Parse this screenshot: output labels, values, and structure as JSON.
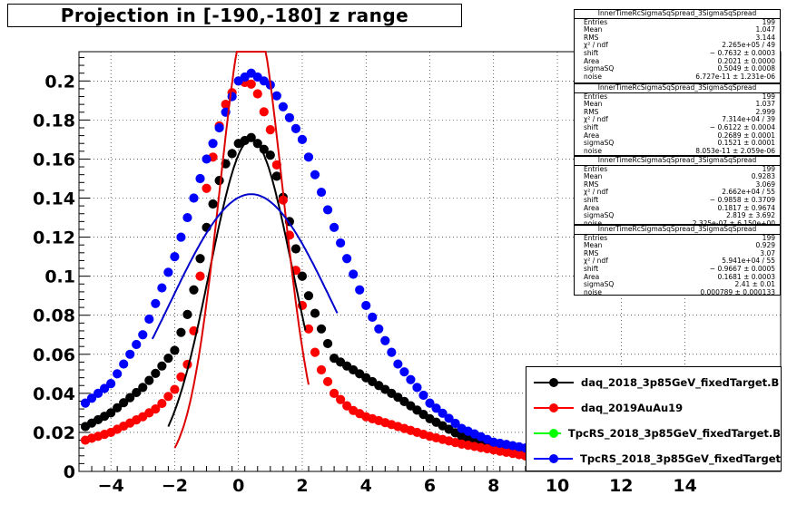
{
  "title": "Projection in [-190,-180] z range",
  "stats": [
    {
      "name": "InnerTimeRcSigmaSqSpread_3SigmaSqSpread",
      "rows": [
        [
          "Entries",
          "199"
        ],
        [
          "Mean",
          "1.047"
        ],
        [
          "RMS",
          "3.144"
        ],
        [
          "χ² / ndf",
          "2.265e+05 / 49"
        ],
        [
          "shift",
          "− 0.7632 ± 0.0003"
        ],
        [
          "Area",
          "0.2021 ± 0.0000"
        ],
        [
          "sigmaSQ",
          "0.5049 ± 0.0008"
        ],
        [
          "noise",
          "6.727e-11 ± 1.231e-06"
        ]
      ]
    },
    {
      "name": "InnerTimeRcSigmaSqSpread_3SigmaSqSpread",
      "rows": [
        [
          "Entries",
          "199"
        ],
        [
          "Mean",
          "1.037"
        ],
        [
          "RMS",
          "2.999"
        ],
        [
          "χ² / ndf",
          "7.314e+04 / 39"
        ],
        [
          "shift",
          "− 0.6122 ± 0.0004"
        ],
        [
          "Area",
          "0.2689 ± 0.0001"
        ],
        [
          "sigmaSQ",
          "0.1521 ± 0.0001"
        ],
        [
          "noise",
          "8.053e-11 ± 2.059e-06"
        ]
      ]
    },
    {
      "name": "InnerTimeRcSigmaSqSpread_3SigmaSqSpread",
      "rows": [
        [
          "Entries",
          "199"
        ],
        [
          "Mean",
          "0.9283"
        ],
        [
          "RMS",
          "3.069"
        ],
        [
          "χ² / ndf",
          "2.662e+04 / 55"
        ],
        [
          "shift",
          "− 0.9858 ± 0.3709"
        ],
        [
          "Area",
          "0.1817 ± 0.9674"
        ],
        [
          "sigmaSQ",
          "2.819 ± 3.692"
        ],
        [
          "noise",
          "2.325e-07 ± 6.150e+00"
        ]
      ]
    },
    {
      "name": "InnerTimeRcSigmaSqSpread_3SigmaSqSpread",
      "rows": [
        [
          "Entries",
          "199"
        ],
        [
          "Mean",
          "0.929"
        ],
        [
          "RMS",
          "3.07"
        ],
        [
          "χ² / ndf",
          "5.941e+04 / 55"
        ],
        [
          "shift",
          "− 0.9667 ± 0.0005"
        ],
        [
          "Area",
          "0.1681 ± 0.0003"
        ],
        [
          "sigmaSQ",
          "2.41 ± 0.01"
        ],
        [
          "noise",
          "0.000789 ± 0.000133"
        ]
      ]
    }
  ],
  "colors": {
    "black": "#000000",
    "red": "#ff0000",
    "green": "#00ff00",
    "blue": "#0000ff",
    "fit_red": "#dd0000",
    "fit_blue": "#0000cc"
  },
  "chart_data": {
    "type": "scatter",
    "title": "Projection in [-190,-180] z range",
    "xlim": [
      -5,
      17
    ],
    "ylim": [
      0,
      0.215
    ],
    "x_ticks": [
      -4,
      -2,
      0,
      2,
      4,
      6,
      8,
      10,
      12,
      14
    ],
    "y_ticks": [
      0,
      0.02,
      0.04,
      0.06,
      0.08,
      0.1,
      0.12,
      0.14,
      0.16,
      0.18,
      0.2
    ],
    "x_tick_labels": [
      "−4",
      "−2",
      "0",
      "2",
      "4",
      "6",
      "8",
      "10",
      "12",
      "14"
    ],
    "y_tick_labels": [
      "0",
      "0.02",
      "0.04",
      "0.06",
      "0.08",
      "0.1",
      "0.12",
      "0.14",
      "0.16",
      "0.18",
      "0.2"
    ],
    "grid": true,
    "legend_position": "bottom-right",
    "series": [
      {
        "name": "daq_2018_3p85GeV_fixedTarget.B",
        "color": "#000000",
        "x": [
          -4.8,
          -4,
          -3,
          -2.5,
          -2,
          -1.5,
          -1,
          -0.5,
          0,
          0.4,
          1,
          1.5,
          2,
          2.3,
          2.6,
          3,
          3.5,
          4,
          5,
          6,
          7,
          8,
          9
        ],
        "y": [
          0.023,
          0.03,
          0.043,
          0.052,
          0.062,
          0.085,
          0.125,
          0.155,
          0.168,
          0.171,
          0.162,
          0.135,
          0.1,
          0.085,
          0.073,
          0.058,
          0.053,
          0.048,
          0.038,
          0.027,
          0.018,
          0.012,
          0.008
        ]
      },
      {
        "name": "daq_2019AuAu19",
        "color": "#ff0000",
        "x": [
          -4.8,
          -4,
          -3,
          -2.5,
          -2,
          -1.5,
          -1.2,
          -1,
          -0.5,
          0,
          0.5,
          1,
          1.5,
          2,
          2.5,
          3,
          3.5,
          4,
          5,
          6,
          7,
          8,
          9
        ],
        "y": [
          0.016,
          0.02,
          0.028,
          0.033,
          0.042,
          0.058,
          0.1,
          0.145,
          0.185,
          0.2,
          0.198,
          0.175,
          0.13,
          0.085,
          0.055,
          0.04,
          0.032,
          0.028,
          0.023,
          0.018,
          0.014,
          0.011,
          0.008
        ]
      },
      {
        "name": "TpcRS_2018_3p85GeV_fixedTarget.B",
        "color": "#00ff00",
        "x": [],
        "y": []
      },
      {
        "name": "TpcRS_2018_3p85GeV_fixedTarget",
        "color": "#0000ff",
        "x": [
          -4.8,
          -4,
          -3,
          -2,
          -1,
          0,
          0.4,
          1,
          2,
          3,
          4,
          5,
          6,
          7,
          8,
          9
        ],
        "y": [
          0.035,
          0.045,
          0.07,
          0.11,
          0.16,
          0.2,
          0.204,
          0.198,
          0.17,
          0.125,
          0.085,
          0.055,
          0.035,
          0.022,
          0.015,
          0.012
        ]
      }
    ],
    "fits": [
      {
        "color": "#000000",
        "type": "gauss",
        "mu": 0.4,
        "sigma": 1.3,
        "amp": 0.17,
        "xmin": -2.2,
        "xmax": 2.1
      },
      {
        "color": "#dd0000",
        "type": "gauss",
        "mu": 0.4,
        "sigma": 0.98,
        "amp": 0.24,
        "xmin": -2.0,
        "xmax": 2.2
      },
      {
        "color": "#0000cc",
        "type": "gauss",
        "mu": 0.4,
        "sigma": 2.55,
        "amp": 0.142,
        "xmin": -2.7,
        "xmax": 3.1
      }
    ]
  }
}
